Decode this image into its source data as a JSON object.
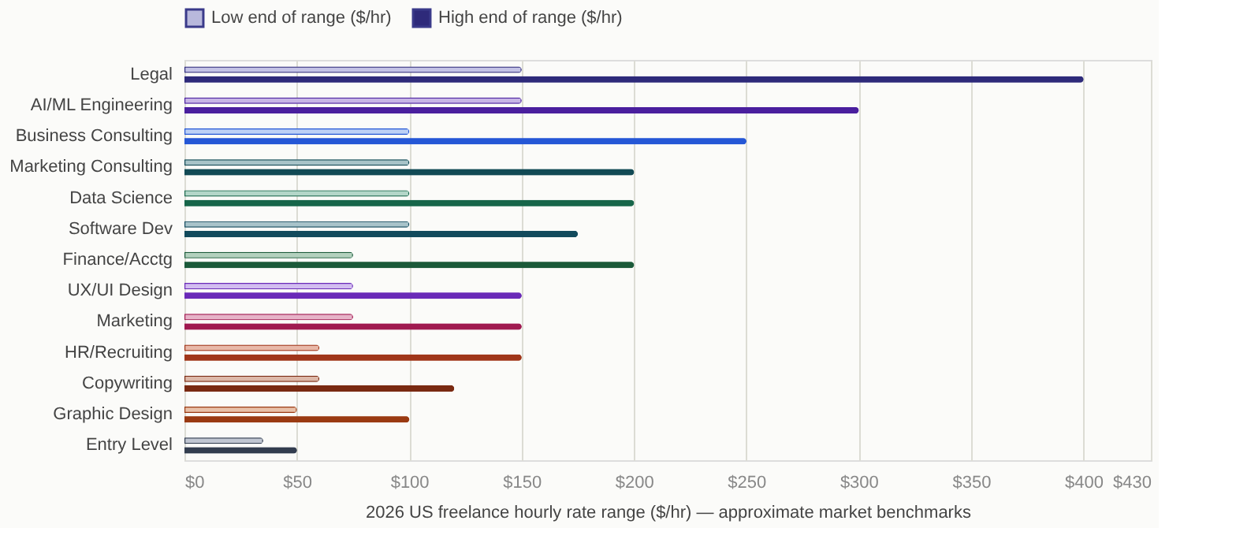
{
  "chart_data": {
    "type": "bar",
    "orientation": "horizontal",
    "xlabel": "2026 US freelance hourly rate range ($/hr) — approximate market benchmarks",
    "categories": [
      "Legal",
      "AI/ML Engineering",
      "Business Consulting",
      "Marketing Consulting",
      "Data Science",
      "Software Dev",
      "Finance/Acctg",
      "UX/UI Design",
      "Marketing",
      "HR/Recruiting",
      "Copywriting",
      "Graphic Design",
      "Entry Level"
    ],
    "series": [
      {
        "name": "Low end of range ($/hr)",
        "color": "#b8b8dc",
        "values": [
          150,
          150,
          100,
          100,
          100,
          100,
          75,
          75,
          75,
          60,
          60,
          50,
          35
        ],
        "colors": [
          "#c4c3e6",
          "#c7b5e6",
          "#bcd0f6",
          "#a8c3c8",
          "#b3d6c8",
          "#a8c3ca",
          "#b3d1be",
          "#d2bdf0",
          "#e6b3c8",
          "#e8b8a8",
          "#ddb8a8",
          "#e8c0a8",
          "#c0c6d2"
        ]
      },
      {
        "name": "High end of range ($/hr)",
        "color": "#2e2a7a",
        "values": [
          400,
          300,
          250,
          200,
          200,
          175,
          200,
          150,
          150,
          150,
          120,
          100,
          50
        ],
        "colors": [
          "#2e2a7a",
          "#4a1f9e",
          "#2557d6",
          "#124a55",
          "#17664a",
          "#124a5c",
          "#1b5a3a",
          "#6a2ab8",
          "#a01a50",
          "#a0361a",
          "#7a2a12",
          "#9a3a12",
          "#333d4f"
        ]
      }
    ],
    "xlim": [
      0,
      430
    ],
    "xticks": [
      {
        "value": 0,
        "label": "$0"
      },
      {
        "value": 50,
        "label": "$50"
      },
      {
        "value": 100,
        "label": "$100"
      },
      {
        "value": 150,
        "label": "$150"
      },
      {
        "value": 200,
        "label": "$200"
      },
      {
        "value": 250,
        "label": "$250"
      },
      {
        "value": 300,
        "label": "$300"
      },
      {
        "value": 350,
        "label": "$350"
      },
      {
        "value": 400,
        "label": "$400"
      },
      {
        "value": 430,
        "label": "$430"
      }
    ],
    "grid": "x",
    "legend": "top"
  }
}
